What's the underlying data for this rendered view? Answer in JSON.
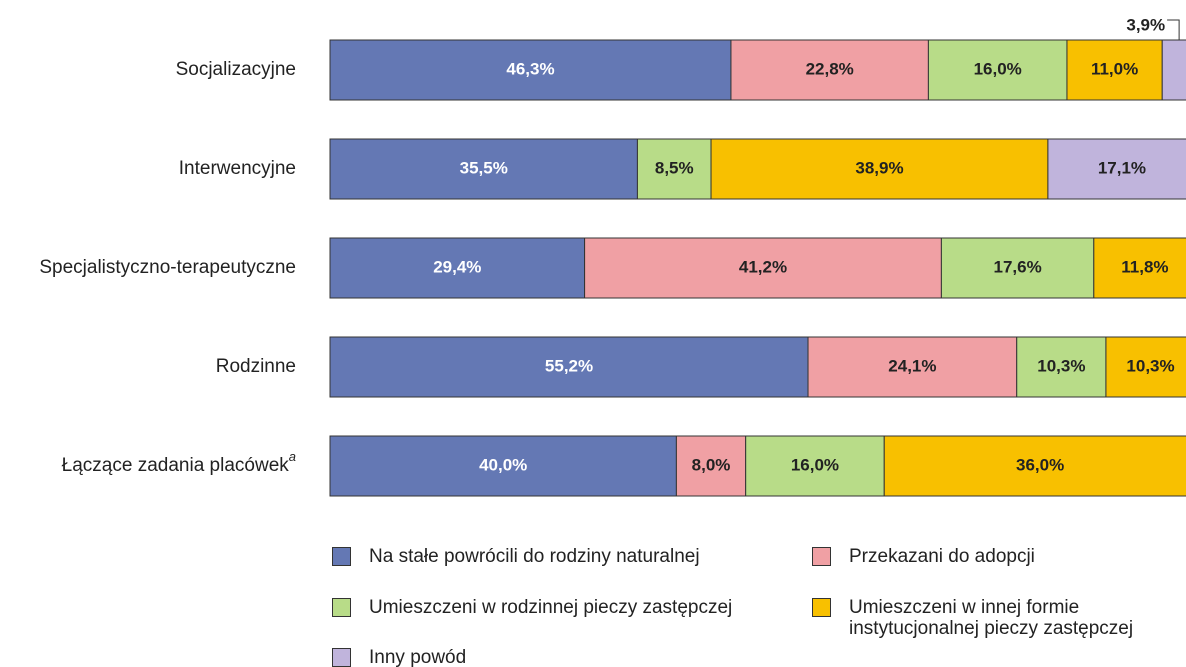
{
  "chart_data": {
    "type": "stacked-bar-horizontal",
    "categories": [
      "Socjalizacyjne",
      "Interwencyjne",
      "Specjalistyczno-terapeutyczne",
      "Rodzinne",
      "Łączące zadania placówek"
    ],
    "category_marks": [
      null,
      null,
      null,
      null,
      "a"
    ],
    "xlim": [
      0,
      100
    ],
    "series": [
      {
        "name": "Na stałe powrócili do rodziny naturalnej",
        "color": "#6478b4",
        "label_color": "#ffffff",
        "values": [
          46.3,
          35.5,
          29.4,
          55.2,
          40.0
        ],
        "value_labels": [
          "46,3%",
          "35,5%",
          "29,4%",
          "55,2%",
          "40,0%"
        ]
      },
      {
        "name": "Przekazani do adopcji",
        "color": "#f0a0a4",
        "label_color": "#222222",
        "values": [
          22.8,
          null,
          41.2,
          24.1,
          8.0
        ],
        "value_labels": [
          "22,8%",
          null,
          "41,2%",
          "24,1%",
          "8,0%"
        ]
      },
      {
        "name": "Umieszczeni w rodzinnej pieczy zastępczej",
        "color": "#b8dc88",
        "label_color": "#222222",
        "values": [
          16.0,
          8.5,
          17.6,
          10.3,
          16.0
        ],
        "value_labels": [
          "16,0%",
          "8,5%",
          "17,6%",
          "10,3%",
          "16,0%"
        ]
      },
      {
        "name": "Umieszczeni w innej formie instytucjonalnej pieczy zastępczej",
        "color": "#f8c000",
        "label_color": "#222222",
        "values": [
          11.0,
          38.9,
          11.8,
          10.3,
          36.0
        ],
        "value_labels": [
          "11,0%",
          "38,9%",
          "11,8%",
          "10,3%",
          "36,0%"
        ]
      },
      {
        "name": "Inny powód",
        "color": "#c0b4dc",
        "label_color": "#222222",
        "values": [
          3.9,
          17.1,
          null,
          null,
          null
        ],
        "value_labels": [
          "3,9%",
          "17,1%",
          null,
          null,
          null
        ]
      }
    ]
  }
}
